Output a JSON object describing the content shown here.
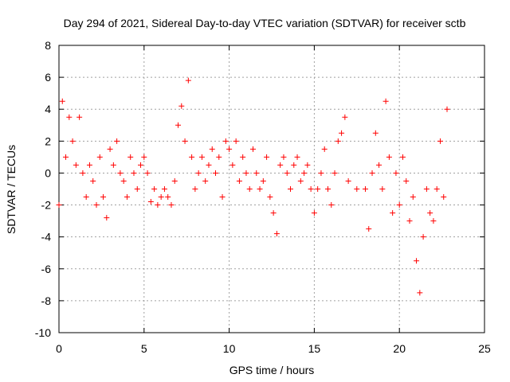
{
  "chart_data": {
    "type": "scatter",
    "title": "Day 294 of 2021, Sidereal Day-to-day VTEC variation (SDTVAR) for receiver sctb",
    "xlabel": "GPS time / hours",
    "ylabel": "SDTVAR / TECUs",
    "xlim": [
      0,
      25
    ],
    "ylim": [
      -10,
      8
    ],
    "xticks": [
      0,
      5,
      10,
      15,
      20,
      25
    ],
    "yticks": [
      -10,
      -8,
      -6,
      -4,
      -2,
      0,
      2,
      4,
      6,
      8
    ],
    "grid": true,
    "marker": "+",
    "color": "#ff0000",
    "series": [
      {
        "name": "SDTVAR",
        "x": [
          0.0,
          0.2,
          0.4,
          0.6,
          0.8,
          1.0,
          1.2,
          1.4,
          1.6,
          1.8,
          2.0,
          2.2,
          2.4,
          2.6,
          2.8,
          3.0,
          3.2,
          3.4,
          3.6,
          3.8,
          4.0,
          4.2,
          4.4,
          4.6,
          4.8,
          5.0,
          5.2,
          5.4,
          5.6,
          5.8,
          6.0,
          6.2,
          6.4,
          6.6,
          6.8,
          7.0,
          7.2,
          7.4,
          7.6,
          7.8,
          8.0,
          8.2,
          8.4,
          8.6,
          8.8,
          9.0,
          9.2,
          9.4,
          9.6,
          9.8,
          10.0,
          10.2,
          10.4,
          10.6,
          10.8,
          11.0,
          11.2,
          11.4,
          11.6,
          11.8,
          12.0,
          12.2,
          12.4,
          12.6,
          12.8,
          13.0,
          13.2,
          13.4,
          13.6,
          13.8,
          14.0,
          14.2,
          14.4,
          14.6,
          14.8,
          15.0,
          15.2,
          15.4,
          15.6,
          15.8,
          16.0,
          16.2,
          16.4,
          16.6,
          16.8,
          17.0,
          17.5,
          18.0,
          18.2,
          18.4,
          18.6,
          18.8,
          19.0,
          19.2,
          19.4,
          19.6,
          19.8,
          20.0,
          20.2,
          20.4,
          20.6,
          20.8,
          21.0,
          21.2,
          21.4,
          21.6,
          21.8,
          22.0,
          22.2,
          22.4,
          22.6,
          22.8
        ],
        "y": [
          -2.0,
          4.5,
          1.0,
          3.5,
          2.0,
          0.5,
          3.5,
          0.0,
          -1.5,
          0.5,
          -0.5,
          -2.0,
          1.0,
          -1.5,
          -2.8,
          1.5,
          0.5,
          2.0,
          0.0,
          -0.5,
          -1.5,
          1.0,
          0.0,
          -1.0,
          0.5,
          1.0,
          0.0,
          -1.8,
          -1.0,
          -2.0,
          -1.5,
          -1.0,
          -1.5,
          -2.0,
          -0.5,
          3.0,
          4.2,
          2.0,
          5.8,
          1.0,
          -1.0,
          0.0,
          1.0,
          -0.5,
          0.5,
          1.5,
          0.0,
          1.0,
          -1.5,
          2.0,
          1.5,
          0.5,
          2.0,
          -0.5,
          1.0,
          0.0,
          -1.0,
          1.5,
          0.0,
          -1.0,
          -0.5,
          1.0,
          -1.5,
          -2.5,
          -3.8,
          0.5,
          1.0,
          0.0,
          -1.0,
          0.5,
          1.0,
          -0.5,
          0.0,
          0.5,
          -1.0,
          -2.5,
          -1.0,
          0.0,
          1.5,
          -1.0,
          -2.0,
          0.0,
          2.0,
          2.5,
          3.5,
          -0.5,
          -1.0,
          -1.0,
          -3.5,
          0.0,
          2.5,
          0.5,
          -1.0,
          4.5,
          1.0,
          -2.5,
          0.0,
          -2.0,
          1.0,
          -0.5,
          -3.0,
          -1.5,
          -5.5,
          -7.5,
          -4.0,
          -1.0,
          -2.5,
          -3.0,
          -1.0,
          2.0,
          -1.5,
          4.0
        ]
      }
    ]
  }
}
